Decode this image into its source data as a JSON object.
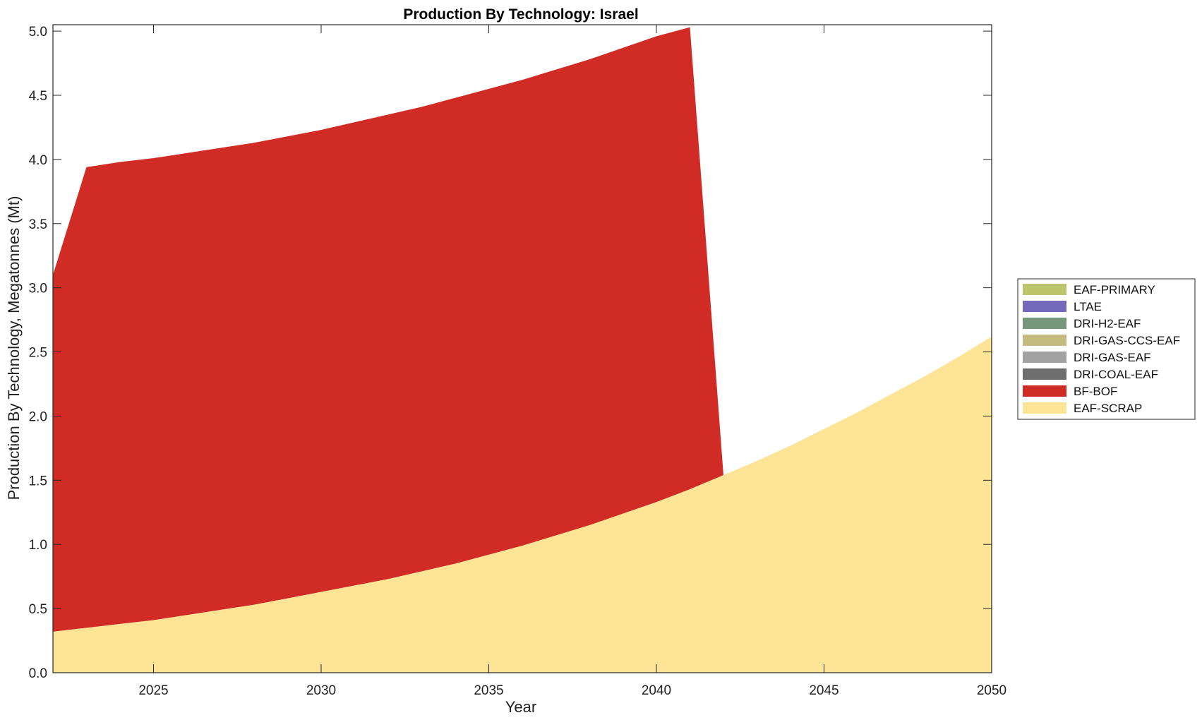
{
  "chart_data": {
    "type": "area",
    "title": "Production By Technology: Israel",
    "xlabel": "Year",
    "ylabel": "Production By Technology, Megatonnes (Mt)",
    "xlim": [
      2022,
      2050
    ],
    "ylim": [
      0,
      5.05
    ],
    "xticks": [
      2025,
      2030,
      2035,
      2040,
      2045,
      2050
    ],
    "yticks": [
      0.0,
      0.5,
      1.0,
      1.5,
      2.0,
      2.5,
      3.0,
      3.5,
      4.0,
      4.5,
      5.0
    ],
    "ytick_labels": [
      "0.0",
      "0.5",
      "1.0",
      "1.5",
      "2.0",
      "2.5",
      "3.0",
      "3.5",
      "4.0",
      "4.5",
      "5.0"
    ],
    "grid": false,
    "stacked": true,
    "legend_position": "right",
    "x": [
      2022,
      2023,
      2024,
      2025,
      2026,
      2027,
      2028,
      2029,
      2030,
      2031,
      2032,
      2033,
      2034,
      2035,
      2036,
      2037,
      2038,
      2039,
      2040,
      2041,
      2042,
      2043,
      2044,
      2045,
      2046,
      2047,
      2048,
      2049,
      2050
    ],
    "series": [
      {
        "name": "EAF-SCRAP",
        "color": "#fde497",
        "values": [
          0.32,
          0.35,
          0.38,
          0.41,
          0.45,
          0.49,
          0.53,
          0.58,
          0.63,
          0.68,
          0.73,
          0.79,
          0.85,
          0.92,
          0.99,
          1.07,
          1.15,
          1.24,
          1.33,
          1.43,
          1.54,
          1.65,
          1.77,
          1.9,
          2.03,
          2.17,
          2.31,
          2.46,
          2.62
        ]
      },
      {
        "name": "BF-BOF",
        "color": "#d12b25",
        "values": [
          2.78,
          3.59,
          3.6,
          3.6,
          3.6,
          3.6,
          3.6,
          3.6,
          3.6,
          3.61,
          3.62,
          3.62,
          3.63,
          3.63,
          3.63,
          3.63,
          3.63,
          3.63,
          3.63,
          3.6,
          0,
          0,
          0,
          0,
          0,
          0,
          0,
          0,
          0
        ]
      },
      {
        "name": "DRI-COAL-EAF",
        "color": "#6e6e6e",
        "values": [
          0,
          0,
          0,
          0,
          0,
          0,
          0,
          0,
          0,
          0,
          0,
          0,
          0,
          0,
          0,
          0,
          0,
          0,
          0,
          0,
          0,
          0,
          0,
          0,
          0,
          0,
          0,
          0,
          0
        ]
      },
      {
        "name": "DRI-GAS-EAF",
        "color": "#a2a2a2",
        "values": [
          0,
          0,
          0,
          0,
          0,
          0,
          0,
          0,
          0,
          0,
          0,
          0,
          0,
          0,
          0,
          0,
          0,
          0,
          0,
          0,
          0,
          0,
          0,
          0,
          0,
          0,
          0,
          0,
          0
        ]
      },
      {
        "name": "DRI-GAS-CCS-EAF",
        "color": "#c4bb7e",
        "values": [
          0,
          0,
          0,
          0,
          0,
          0,
          0,
          0,
          0,
          0,
          0,
          0,
          0,
          0,
          0,
          0,
          0,
          0,
          0,
          0,
          0,
          0,
          0,
          0,
          0,
          0,
          0,
          0,
          0
        ]
      },
      {
        "name": "DRI-H2-EAF",
        "color": "#76977c",
        "values": [
          0,
          0,
          0,
          0,
          0,
          0,
          0,
          0,
          0,
          0,
          0,
          0,
          0,
          0,
          0,
          0,
          0,
          0,
          0,
          0,
          0,
          0,
          0,
          0,
          0,
          0,
          0,
          0,
          0
        ]
      },
      {
        "name": "LTAE",
        "color": "#7569bb",
        "values": [
          0,
          0,
          0,
          0,
          0,
          0,
          0,
          0,
          0,
          0,
          0,
          0,
          0,
          0,
          0,
          0,
          0,
          0,
          0,
          0,
          0,
          0,
          0,
          0,
          0,
          0,
          0,
          0,
          0
        ]
      },
      {
        "name": "EAF-PRIMARY",
        "color": "#bcc56b",
        "values": [
          0,
          0,
          0,
          0,
          0,
          0,
          0,
          0,
          0,
          0,
          0,
          0,
          0,
          0,
          0,
          0,
          0,
          0,
          0,
          0,
          0,
          0,
          0,
          0,
          0,
          0,
          0,
          0,
          0
        ]
      }
    ],
    "legend_order": [
      "EAF-PRIMARY",
      "LTAE",
      "DRI-H2-EAF",
      "DRI-GAS-CCS-EAF",
      "DRI-GAS-EAF",
      "DRI-COAL-EAF",
      "BF-BOF",
      "EAF-SCRAP"
    ]
  }
}
